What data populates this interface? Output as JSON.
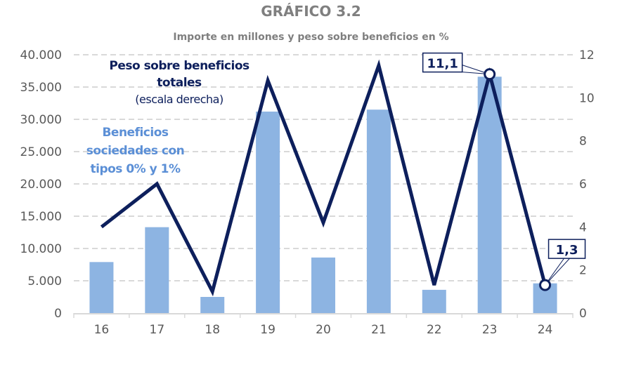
{
  "chart_data": {
    "type": "bar+line",
    "title": "GRÁFICO 3.2",
    "subtitle": "Importe en millones y peso sobre beneficios en %",
    "categories": [
      "16",
      "17",
      "18",
      "19",
      "20",
      "21",
      "22",
      "23",
      "24"
    ],
    "series": [
      {
        "name": "Beneficios sociedades con tipos 0% y 1%",
        "type": "bar",
        "axis": "left",
        "color": "#8db4e2",
        "values": [
          7900,
          13300,
          2500,
          31200,
          8600,
          31500,
          3600,
          36600,
          4600
        ]
      },
      {
        "name": "Peso sobre beneficios totales",
        "name_note": "(escala derecha)",
        "type": "line",
        "axis": "right",
        "color": "#0d1f5c",
        "values": [
          4.0,
          6.0,
          1.0,
          10.8,
          4.2,
          11.5,
          1.3,
          11.1,
          1.3
        ]
      }
    ],
    "y_left": {
      "range": [
        0,
        40000
      ],
      "ticks": [
        "0",
        "5.000",
        "10.000",
        "15.000",
        "20.000",
        "25.000",
        "30.000",
        "35.000",
        "40.000"
      ]
    },
    "y_right": {
      "range": [
        0,
        12
      ],
      "ticks": [
        "0",
        "2",
        "4",
        "6",
        "8",
        "10",
        "12"
      ]
    },
    "data_labels": [
      {
        "category": "23",
        "text": "11,1"
      },
      {
        "category": "24",
        "text": "1,3"
      }
    ],
    "grid": "horizontal dashed",
    "legend": "inline annotations"
  }
}
